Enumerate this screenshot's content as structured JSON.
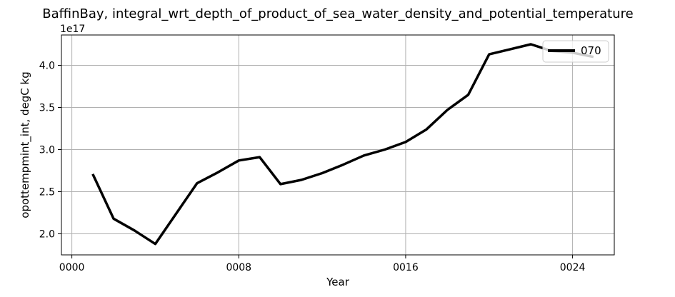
{
  "chart_data": {
    "type": "line",
    "title": "BaffinBay, integral_wrt_depth_of_product_of_sea_water_density_and_potential_temperature",
    "xlabel": "Year",
    "ylabel": "opottempmint_int, degC kg",
    "offset_label": "1e17",
    "xlim": [
      -0.5,
      26.0
    ],
    "ylim": [
      1.75,
      4.36
    ],
    "x_ticks": [
      0,
      8,
      16,
      24
    ],
    "x_tick_labels": [
      "0000",
      "0008",
      "0016",
      "0024"
    ],
    "y_ticks": [
      2.0,
      2.5,
      3.0,
      3.5,
      4.0
    ],
    "y_tick_labels": [
      "2.0",
      "2.5",
      "3.0",
      "3.5",
      "4.0"
    ],
    "grid": true,
    "legend_position": "upper right",
    "series": [
      {
        "name": "070",
        "color": "#000000",
        "x": [
          1,
          2,
          3,
          4,
          5,
          6,
          7,
          8,
          9,
          10,
          11,
          12,
          13,
          14,
          15,
          16,
          17,
          18,
          19,
          20,
          21,
          22,
          23,
          24,
          25
        ],
        "y": [
          2.71,
          2.18,
          2.04,
          1.88,
          2.24,
          2.6,
          2.73,
          2.87,
          2.91,
          2.59,
          2.64,
          2.72,
          2.82,
          2.93,
          3.0,
          3.09,
          3.24,
          3.47,
          3.65,
          4.13,
          4.19,
          4.25,
          4.17,
          4.15,
          4.1
        ]
      }
    ]
  }
}
